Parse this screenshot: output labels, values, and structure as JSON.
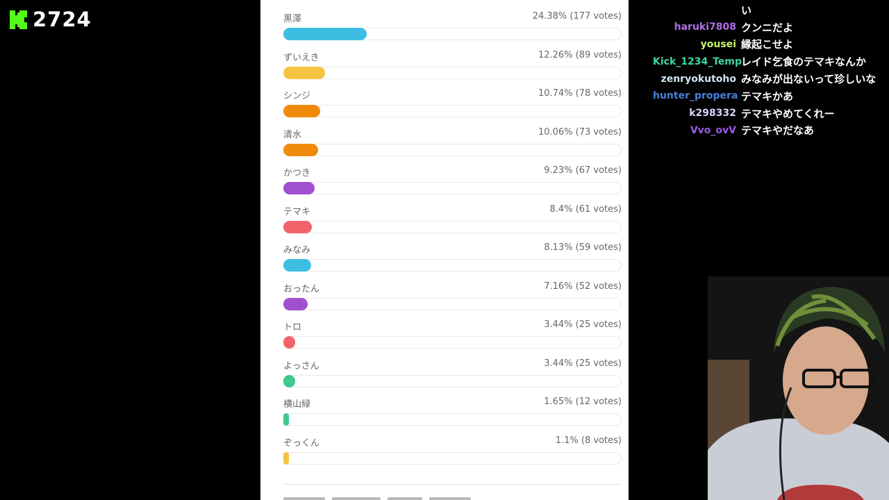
{
  "viewer": {
    "count": "2724",
    "logo_icon": "kick-logo-icon",
    "logo_color": "#53fc18"
  },
  "poll": {
    "options": [
      {
        "label": "黒澤",
        "stat": "24.38% (177 votes)",
        "percent": 24.38,
        "color": "#3ebde3"
      },
      {
        "label": "ずいえき",
        "stat": "12.26% (89 votes)",
        "percent": 12.26,
        "color": "#f5c342"
      },
      {
        "label": "シンジ",
        "stat": "10.74% (78 votes)",
        "percent": 10.74,
        "color": "#f08a0a"
      },
      {
        "label": "清水",
        "stat": "10.06% (73 votes)",
        "percent": 10.06,
        "color": "#f08a0a"
      },
      {
        "label": "かつき",
        "stat": "9.23% (67 votes)",
        "percent": 9.23,
        "color": "#a04fcf"
      },
      {
        "label": "テマキ",
        "stat": "8.4% (61 votes)",
        "percent": 8.4,
        "color": "#f2646a"
      },
      {
        "label": "みなみ",
        "stat": "8.13% (59 votes)",
        "percent": 8.13,
        "color": "#3ebde3"
      },
      {
        "label": "おったん",
        "stat": "7.16% (52 votes)",
        "percent": 7.16,
        "color": "#a04fcf"
      },
      {
        "label": "トロ",
        "stat": "3.44% (25 votes)",
        "percent": 3.44,
        "color": "#f2646a"
      },
      {
        "label": "よっさん",
        "stat": "3.44% (25 votes)",
        "percent": 3.44,
        "color": "#3ec98e"
      },
      {
        "label": "横山緑",
        "stat": "1.65% (12 votes)",
        "percent": 1.65,
        "color": "#3ec98e"
      },
      {
        "label": "ぞっくん",
        "stat": "1.1% (8 votes)",
        "percent": 1.1,
        "color": "#f5c342"
      }
    ]
  },
  "chat": {
    "messages": [
      {
        "user": "",
        "text": "い",
        "color": "#ffffff"
      },
      {
        "user": "haruki7808",
        "text": "クンニだよ",
        "color": "#b06ee8"
      },
      {
        "user": "yousei",
        "text": "縁起こせよ",
        "color": "#c8f56a"
      },
      {
        "user": "Kick_1234_Temp",
        "text": "レイド乞食のテマキなんか",
        "color": "#3fd6a2"
      },
      {
        "user": "zenryokutoho",
        "text": "みなみが出ないって珍しいな",
        "color": "#cfe6f2"
      },
      {
        "user": "hunter_propera",
        "text": "テマキかあ",
        "color": "#4a7fdc"
      },
      {
        "user": "k298332",
        "text": "テマキやめてくれー",
        "color": "#d8d8ff"
      },
      {
        "user": "Vvo_ovV",
        "text": "テマキやだなあ",
        "color": "#9b59e6"
      }
    ]
  }
}
